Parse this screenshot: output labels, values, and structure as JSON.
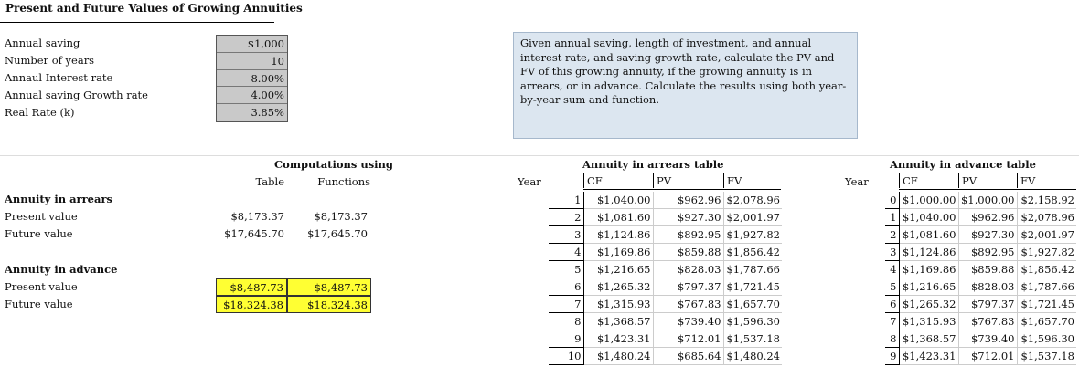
{
  "title": "Present and Future Values of Growing Annuities",
  "inputs": [
    {
      "label": "Annual saving",
      "value": "$1,000"
    },
    {
      "label": "Number of years",
      "value": "10"
    },
    {
      "label": "Annaul Interest rate",
      "value": "8.00%"
    },
    {
      "label": "Annual saving Growth rate",
      "value": "4.00%"
    },
    {
      "label": "Real Rate (k)",
      "value": "3.85%"
    }
  ],
  "description": "Given annual saving, length of investment, and annual interest rate, and saving growth rate, calculate the PV and FV of this growing annuity, if the growing annuity is in arrears, or in advance. Calculate the results using both year-by-year sum and function.",
  "computations": {
    "heading": "Computations using",
    "col_table": "Table",
    "col_functions": "Functions",
    "arrears": {
      "heading": "Annuity in arrears",
      "pv_label": "Present value",
      "pv_table": "$8,173.37",
      "pv_func": "$8,173.37",
      "fv_label": "Future value",
      "fv_table": "$17,645.70",
      "fv_func": "$17,645.70"
    },
    "advance": {
      "heading": "Annuity in advance",
      "pv_label": "Present value",
      "pv_table": "$8,487.73",
      "pv_func": "$8,487.73",
      "fv_label": "Future value",
      "fv_table": "$18,324.38",
      "fv_func": "$18,324.38"
    }
  },
  "arrears_table": {
    "title": "Annuity in arrears table",
    "year_label": "Year",
    "headers": [
      "CF",
      "PV",
      "FV"
    ],
    "rows": [
      [
        "1",
        "$1,040.00",
        "$962.96",
        "$2,078.96"
      ],
      [
        "2",
        "$1,081.60",
        "$927.30",
        "$2,001.97"
      ],
      [
        "3",
        "$1,124.86",
        "$892.95",
        "$1,927.82"
      ],
      [
        "4",
        "$1,169.86",
        "$859.88",
        "$1,856.42"
      ],
      [
        "5",
        "$1,216.65",
        "$828.03",
        "$1,787.66"
      ],
      [
        "6",
        "$1,265.32",
        "$797.37",
        "$1,721.45"
      ],
      [
        "7",
        "$1,315.93",
        "$767.83",
        "$1,657.70"
      ],
      [
        "8",
        "$1,368.57",
        "$739.40",
        "$1,596.30"
      ],
      [
        "9",
        "$1,423.31",
        "$712.01",
        "$1,537.18"
      ],
      [
        "10",
        "$1,480.24",
        "$685.64",
        "$1,480.24"
      ]
    ]
  },
  "advance_table": {
    "title": "Annuity in advance table",
    "year_label": "Year",
    "headers": [
      "CF",
      "PV",
      "FV"
    ],
    "rows": [
      [
        "0",
        "$1,000.00",
        "$1,000.00",
        "$2,158.92"
      ],
      [
        "1",
        "$1,040.00",
        "$962.96",
        "$2,078.96"
      ],
      [
        "2",
        "$1,081.60",
        "$927.30",
        "$2,001.97"
      ],
      [
        "3",
        "$1,124.86",
        "$892.95",
        "$1,927.82"
      ],
      [
        "4",
        "$1,169.86",
        "$859.88",
        "$1,856.42"
      ],
      [
        "5",
        "$1,216.65",
        "$828.03",
        "$1,787.66"
      ],
      [
        "6",
        "$1,265.32",
        "$797.37",
        "$1,721.45"
      ],
      [
        "7",
        "$1,315.93",
        "$767.83",
        "$1,657.70"
      ],
      [
        "8",
        "$1,368.57",
        "$739.40",
        "$1,596.30"
      ],
      [
        "9",
        "$1,423.31",
        "$712.01",
        "$1,537.18"
      ]
    ]
  },
  "colors": {
    "input_fill": "#c9c9c9",
    "note_fill": "#dce6f0",
    "highlight": "#ffff33"
  }
}
